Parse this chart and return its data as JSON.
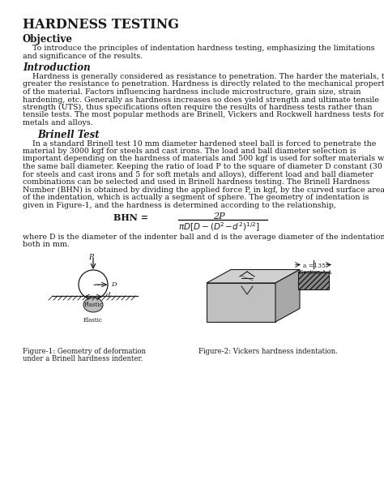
{
  "title": "HARDNESS TESTING",
  "section1": "Objective",
  "obj_text": "    To introduce the principles of indentation hardness testing, emphasizing the limitations\nand significance of the results.",
  "section2": "Introduction",
  "intro_text": "    Hardness is generally considered as resistance to penetration. The harder the materials, the\ngreater the resistance to penetration. Hardness is directly related to the mechanical properties\nof the material. Factors influencing hardness include microstructure, grain size, strain\nhardening, etc. Generally as hardness increases so does yield strength and ultimate tensile\nstrength (UTS), thus specifications often require the results of hardness tests rather than\ntensile tests. The most popular methods are Brinell, Vickers and Rockwell hardness tests for\nmetals and alloys.",
  "section3": "Brinell Test",
  "brinell_text": "    In a standard Brinell test 10 mm diameter hardened steel ball is forced to penetrate the\nmaterial by 3000 kgf for steels and cast irons. The load and ball diameter selection is\nimportant depending on the hardness of materials and 500 kgf is used for softer materials with\nthe same ball diameter. Keeping the ratio of load P to the square of diameter D constant (30\nfor steels and cast irons and 5 for soft metals and alloys), different load and ball diameter\ncombinations can be selected and used in Brinell hardness testing. The Brinell Hardness\nNumber (BHN) is obtained by dividing the applied force P, in kgf, by the curved surface area\nof the indentation, which is actually a segment of sphere. The geometry of indentation is\ngiven in Figure-1, and the hardness is determined according to the relationship,",
  "fig1_caption_l1": "Figure-1: Geometry of deformation",
  "fig1_caption_l2": "under a Brinell hardness indenter.",
  "fig2_caption": "Figure-2: Vickers hardness indentation.",
  "where_text": "where D is the diameter of the indenter ball and d is the average diameter of the indentation,\nboth in mm.",
  "bg_color": "#ffffff",
  "text_color": "#1a1a1a",
  "fs_body": 6.8,
  "fs_title": 11.5,
  "fs_section": 8.5,
  "fs_caption": 6.2
}
